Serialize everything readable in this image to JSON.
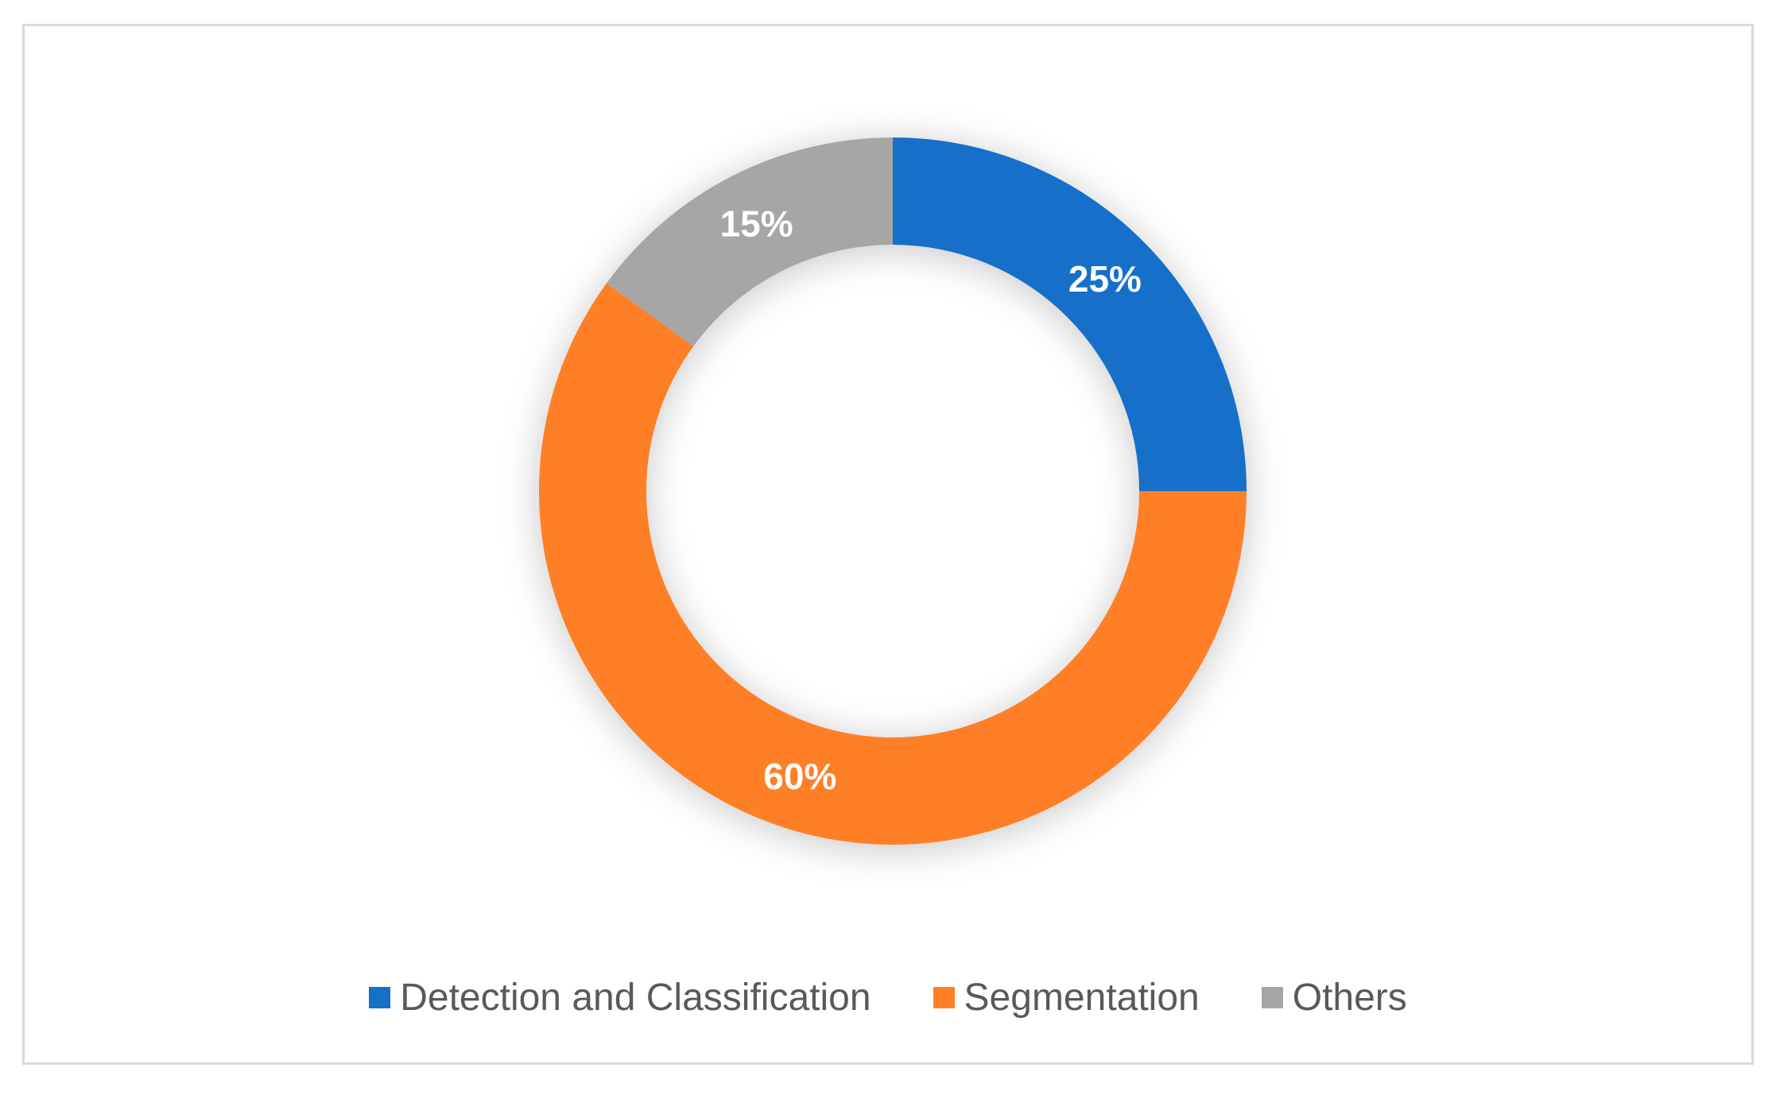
{
  "chart_data": {
    "type": "pie",
    "donut": true,
    "title": "",
    "categories": [
      "Detection and Classification",
      "Segmentation",
      "Others"
    ],
    "values": [
      25,
      60,
      15
    ],
    "value_labels": [
      "25%",
      "60%",
      "15%"
    ],
    "colors": [
      "#1570CA",
      "#FF7F27",
      "#A6A6A6"
    ],
    "legend": {
      "position": "bottom",
      "entries": [
        "Detection and Classification",
        "Segmentation",
        "Others"
      ]
    }
  }
}
